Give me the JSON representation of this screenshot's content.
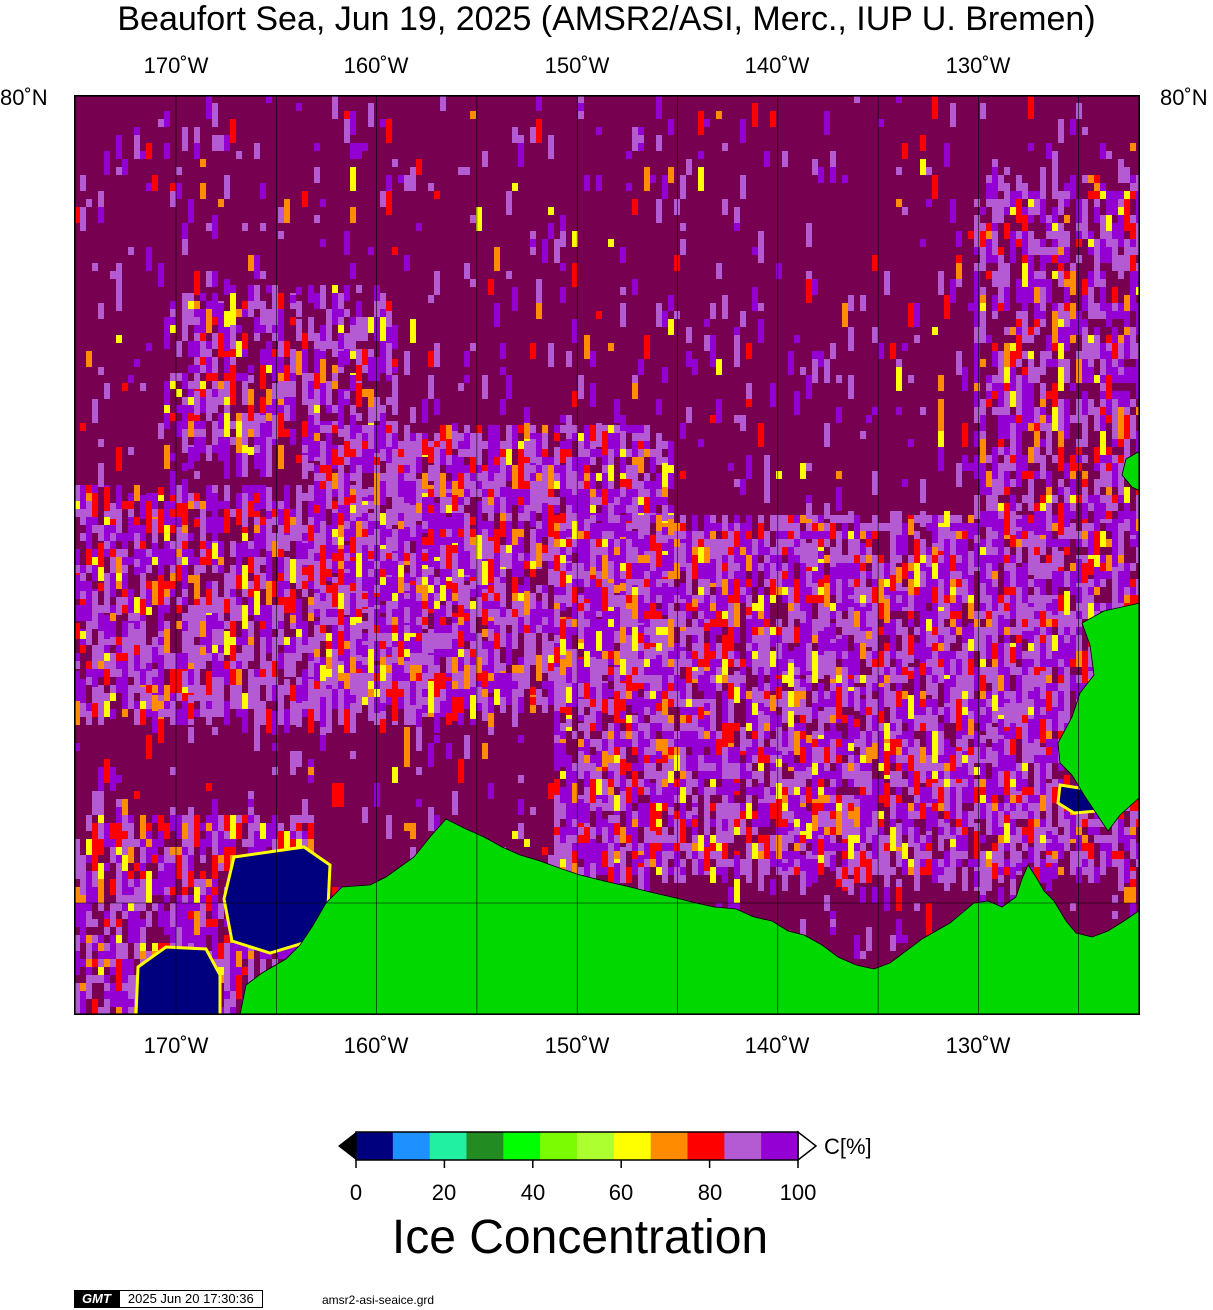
{
  "title": "Beaufort Sea, Jun 19, 2025 (AMSR2/ASI, Merc., IUP U. Bremen)",
  "lon_labels": [
    "170˚W",
    "160˚W",
    "150˚W",
    "140˚W",
    "130˚W"
  ],
  "lat_labels": {
    "left": "80˚N",
    "right": "80˚N"
  },
  "colorbar": {
    "colors": [
      "#00007f",
      "#1e90ff",
      "#20f0a0",
      "#228b22",
      "#00ff00",
      "#7cfc00",
      "#adff2f",
      "#ffff00",
      "#ff8c00",
      "#ff0000",
      "#b45ad2",
      "#9400d3"
    ],
    "tick_labels": [
      "0",
      "20",
      "40",
      "60",
      "80",
      "100"
    ],
    "unit": "C[%]",
    "label": "Ice Concentration",
    "open_water_color": "#780050",
    "land_color": "#00d800"
  },
  "footer": {
    "logo": "GMT",
    "timestamp": "2025 Jun 20 17:30:36",
    "filename": "amsr2-asi-seaice.grd"
  }
}
